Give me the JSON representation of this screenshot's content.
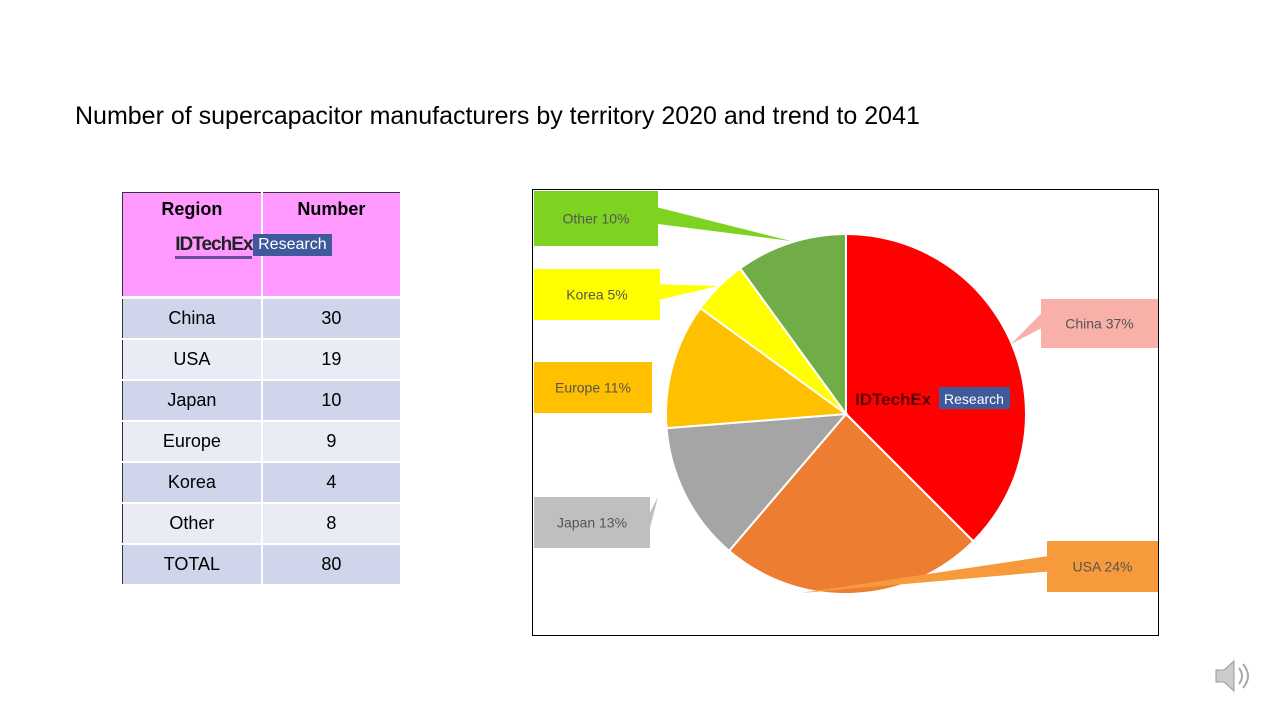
{
  "title": "Number of supercapacitor manufacturers by territory 2020 and trend to 2041",
  "table": {
    "headers": [
      "Region",
      "Number"
    ],
    "logo": {
      "brand": "IDTechEx",
      "tag": "Research"
    },
    "rows": [
      [
        "China",
        "30"
      ],
      [
        "USA",
        "19"
      ],
      [
        "Japan",
        "10"
      ],
      [
        "Europe",
        "9"
      ],
      [
        "Korea",
        "4"
      ],
      [
        "Other",
        "8"
      ],
      [
        "TOTAL",
        "80"
      ]
    ]
  },
  "chart_data": {
    "type": "pie",
    "title": "",
    "start": "top",
    "direction": "clockwise",
    "categories": [
      "China",
      "USA",
      "Japan",
      "Europe",
      "Korea",
      "Other"
    ],
    "values": [
      30,
      19,
      10,
      9,
      4,
      8
    ],
    "labels": [
      "China  37%",
      "USA 24%",
      "Japan 13%",
      "Europe 11%",
      "Korea 5%",
      "Other  10%"
    ],
    "colors": [
      "#ff0000",
      "#ed7d31",
      "#a5a5a5",
      "#ffc000",
      "#ffff00",
      "#70ad47"
    ],
    "label_colors": [
      "#f8b0a8",
      "#f79a3c",
      "#bfbfbf",
      "#ffc000",
      "#ffff00",
      "#7ed321"
    ],
    "watermark": {
      "brand": "IDTechEx",
      "tag": "Research"
    }
  }
}
